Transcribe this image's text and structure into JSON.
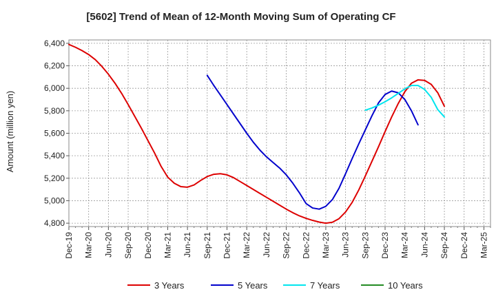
{
  "chart_data": {
    "type": "line",
    "title": "[5602]  Trend of Mean of 12-Month Moving Sum of Operating CF",
    "xlabel": "",
    "ylabel": "Amount (million yen)",
    "ylim": [
      4770,
      6430
    ],
    "yticks": [
      4800,
      5000,
      5200,
      5400,
      5600,
      5800,
      6000,
      6200,
      6400
    ],
    "ytick_labels": [
      "4,800",
      "5,000",
      "5,200",
      "5,400",
      "5,600",
      "5,800",
      "6,000",
      "6,200",
      "6,400"
    ],
    "x_tick_labels": [
      "Dec-19",
      "Mar-20",
      "Jun-20",
      "Sep-20",
      "Dec-20",
      "Mar-21",
      "Jun-21",
      "Sep-21",
      "Dec-21",
      "Mar-22",
      "Jun-22",
      "Sep-22",
      "Dec-22",
      "Mar-23",
      "Jun-23",
      "Sep-23",
      "Dec-23",
      "Mar-24",
      "Jun-24",
      "Sep-24",
      "Dec-24",
      "Mar-25"
    ],
    "x_start": "Dec-19",
    "x_count_months": 64,
    "grid": true,
    "legend_position": "bottom",
    "series": [
      {
        "name": "3 Years",
        "color": "#dd0000",
        "start_index": 0,
        "values": [
          6390,
          6365,
          6335,
          6300,
          6255,
          6195,
          6125,
          6045,
          5955,
          5855,
          5750,
          5645,
          5535,
          5425,
          5305,
          5210,
          5155,
          5125,
          5120,
          5140,
          5180,
          5215,
          5235,
          5240,
          5230,
          5205,
          5170,
          5135,
          5100,
          5065,
          5030,
          4995,
          4960,
          4925,
          4893,
          4865,
          4843,
          4825,
          4810,
          4800,
          4808,
          4840,
          4900,
          4985,
          5095,
          5220,
          5350,
          5480,
          5615,
          5745,
          5865,
          5970,
          6045,
          6075,
          6070,
          6035,
          5960,
          5840
        ]
      },
      {
        "name": "5 Years",
        "color": "#0000cc",
        "start_index": 21,
        "values": [
          6115,
          6025,
          5940,
          5855,
          5770,
          5685,
          5600,
          5520,
          5450,
          5390,
          5340,
          5290,
          5230,
          5155,
          5070,
          4975,
          4935,
          4925,
          4950,
          5010,
          5110,
          5240,
          5375,
          5505,
          5630,
          5755,
          5870,
          5945,
          5975,
          5960,
          5900,
          5800,
          5675
        ]
      },
      {
        "name": "7 Years",
        "color": "#00e5ee",
        "start_index": 45,
        "values": [
          5805,
          5825,
          5850,
          5880,
          5915,
          5955,
          5995,
          6025,
          6025,
          5990,
          5920,
          5810,
          5745
        ]
      },
      {
        "name": "10 Years",
        "color": "#228b22",
        "start_index": 0,
        "values": []
      }
    ]
  }
}
